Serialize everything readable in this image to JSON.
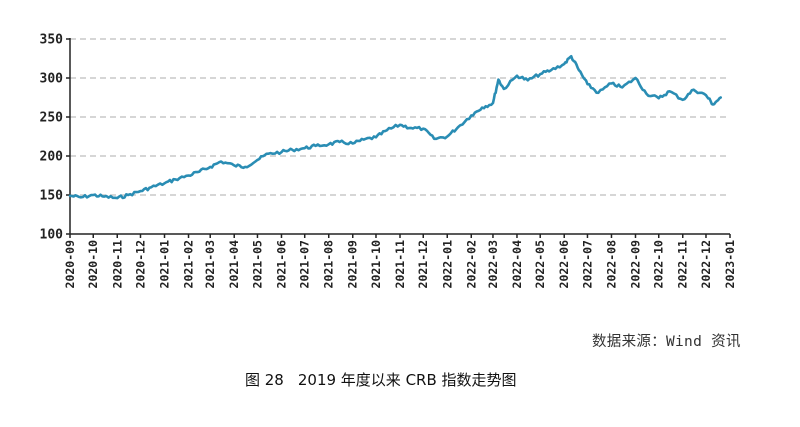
{
  "chart_data": {
    "type": "line",
    "title": "2019 年度以来 CRB 指数走势图",
    "xlabel": "",
    "ylabel": "",
    "ylim": [
      100,
      350
    ],
    "yticks": [
      100,
      150,
      200,
      250,
      300,
      350
    ],
    "xticks": [
      "2020-09",
      "2020-10",
      "2020-11",
      "2020-12",
      "2021-01",
      "2021-02",
      "2021-03",
      "2021-04",
      "2021-05",
      "2021-06",
      "2021-07",
      "2021-08",
      "2021-09",
      "2021-10",
      "2021-11",
      "2021-12",
      "2022-01",
      "2022-02",
      "2022-03",
      "2022-04",
      "2022-05",
      "2022-06",
      "2022-07",
      "2022-08",
      "2022-09",
      "2022-10",
      "2022-11",
      "2022-12",
      "2023-01"
    ],
    "grid": true,
    "series": [
      {
        "color": "#2a8db4",
        "x": [
          "2020-09-01",
          "2020-09-15",
          "2020-10-01",
          "2020-10-15",
          "2020-11-01",
          "2020-11-15",
          "2020-12-01",
          "2020-12-15",
          "2021-01-01",
          "2021-01-15",
          "2021-02-01",
          "2021-02-15",
          "2021-03-01",
          "2021-03-15",
          "2021-04-01",
          "2021-04-15",
          "2021-05-01",
          "2021-05-15",
          "2021-06-01",
          "2021-06-15",
          "2021-07-01",
          "2021-07-15",
          "2021-08-01",
          "2021-08-15",
          "2021-09-01",
          "2021-09-15",
          "2021-10-01",
          "2021-10-15",
          "2021-11-01",
          "2021-11-15",
          "2021-12-01",
          "2021-12-15",
          "2022-01-01",
          "2022-01-15",
          "2022-02-01",
          "2022-02-15",
          "2022-03-01",
          "2022-03-08",
          "2022-03-15",
          "2022-04-01",
          "2022-04-15",
          "2022-05-01",
          "2022-05-15",
          "2022-06-01",
          "2022-06-10",
          "2022-06-20",
          "2022-07-01",
          "2022-07-15",
          "2022-08-01",
          "2022-08-15",
          "2022-09-01",
          "2022-09-15",
          "2022-10-01",
          "2022-10-15",
          "2022-11-01",
          "2022-11-15",
          "2022-12-01",
          "2022-12-10",
          "2022-12-20"
        ],
        "values": [
          149,
          147,
          150,
          148,
          146,
          150,
          155,
          160,
          165,
          170,
          175,
          180,
          186,
          193,
          188,
          186,
          195,
          203,
          205,
          208,
          210,
          213,
          215,
          218,
          216,
          221,
          224,
          233,
          240,
          236,
          235,
          222,
          225,
          237,
          252,
          262,
          268,
          298,
          286,
          303,
          297,
          305,
          310,
          318,
          328,
          310,
          292,
          281,
          293,
          288,
          300,
          280,
          274,
          283,
          272,
          285,
          278,
          266,
          275
        ]
      }
    ]
  },
  "footer": {
    "source": "数据来源：Wind 资讯",
    "figure_label": "图 28",
    "caption": "2019 年度以来 CRB 指数走势图"
  }
}
